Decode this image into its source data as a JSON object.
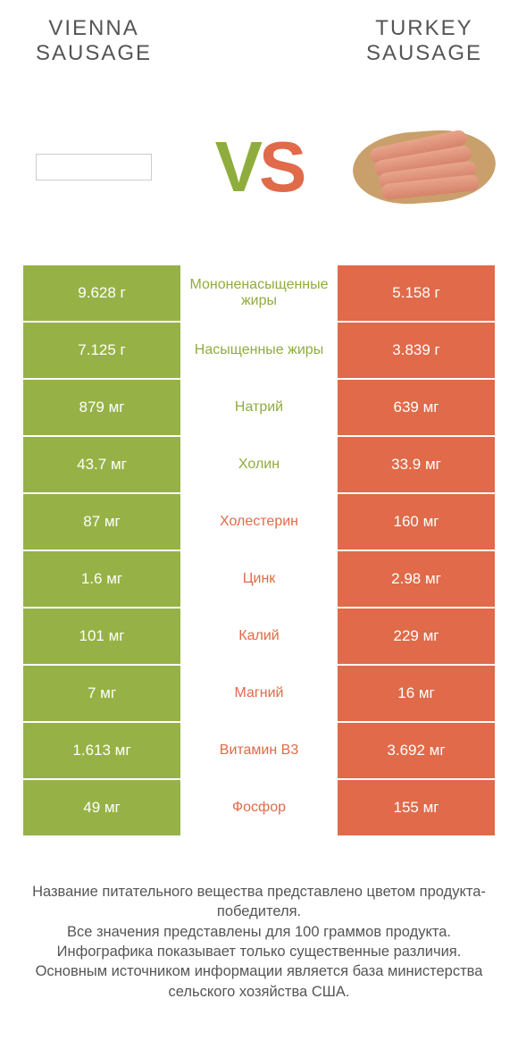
{
  "titles": {
    "left": "VIENNA\nSAUSAGE",
    "right": "TURKEY\nSAUSAGE"
  },
  "vs": {
    "v": "V",
    "s": "S"
  },
  "colors": {
    "green": "#96b246",
    "orange": "#e06a49",
    "green_text": "#8fad3d",
    "orange_text": "#e06a49",
    "background": "#ffffff",
    "body_text": "#555555"
  },
  "rows": [
    {
      "left": "9.628 г",
      "label": "Мононенасыщенные жиры",
      "right": "5.158 г",
      "winner": "left"
    },
    {
      "left": "7.125 г",
      "label": "Насыщенные жиры",
      "right": "3.839 г",
      "winner": "left"
    },
    {
      "left": "879 мг",
      "label": "Натрий",
      "right": "639 мг",
      "winner": "left"
    },
    {
      "left": "43.7 мг",
      "label": "Холин",
      "right": "33.9 мг",
      "winner": "left"
    },
    {
      "left": "87 мг",
      "label": "Холестерин",
      "right": "160 мг",
      "winner": "right"
    },
    {
      "left": "1.6 мг",
      "label": "Цинк",
      "right": "2.98 мг",
      "winner": "right"
    },
    {
      "left": "101 мг",
      "label": "Калий",
      "right": "229 мг",
      "winner": "right"
    },
    {
      "left": "7 мг",
      "label": "Магний",
      "right": "16 мг",
      "winner": "right"
    },
    {
      "left": "1.613 мг",
      "label": "Витамин B3",
      "right": "3.692 мг",
      "winner": "right"
    },
    {
      "left": "49 мг",
      "label": "Фосфор",
      "right": "155 мг",
      "winner": "right"
    }
  ],
  "footer": {
    "line1": "Название питательного вещества представлено цветом продукта-победителя.",
    "line2": "Все значения представлены для 100 граммов продукта.",
    "line3": "Инфографика показывает только существенные различия.",
    "line4": "Основным источником информации является база министерства сельского хозяйства США."
  }
}
